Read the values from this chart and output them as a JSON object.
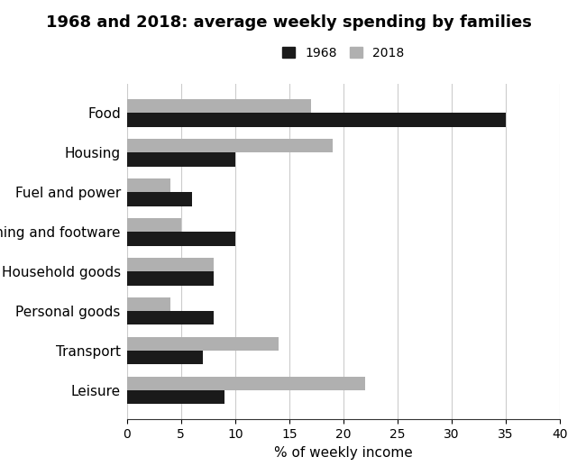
{
  "title": "1968 and 2018: average weekly spending by families",
  "categories": [
    "Food",
    "Housing",
    "Fuel and power",
    "Clothing and footware",
    "Household goods",
    "Personal goods",
    "Transport",
    "Leisure"
  ],
  "values_1968": [
    35,
    10,
    6,
    10,
    8,
    8,
    7,
    9
  ],
  "values_2018": [
    17,
    19,
    4,
    5,
    8,
    4,
    14,
    22
  ],
  "color_1968": "#1a1a1a",
  "color_2018": "#b0b0b0",
  "xlabel": "% of weekly income",
  "xlim": [
    0,
    40
  ],
  "xticks": [
    0,
    5,
    10,
    15,
    20,
    25,
    30,
    35,
    40
  ],
  "legend_labels": [
    "1968",
    "2018"
  ],
  "bar_height": 0.35,
  "title_fontsize": 13,
  "label_fontsize": 11,
  "tick_fontsize": 10,
  "background_color": "#ffffff"
}
